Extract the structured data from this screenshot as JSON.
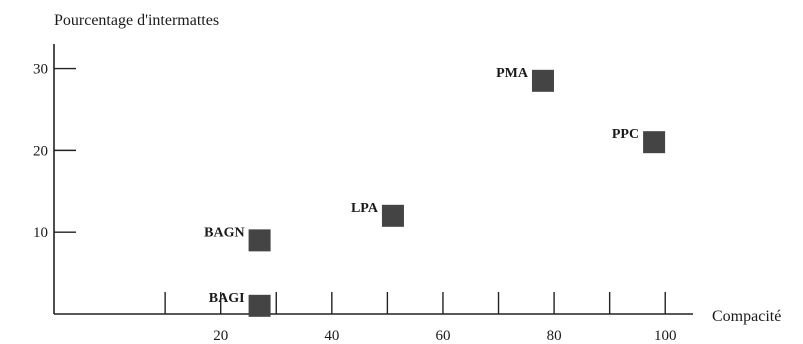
{
  "chart_data": {
    "type": "scatter",
    "title": "",
    "ylabel": "Pourcentage d'intermattes",
    "xlabel": "Compacité",
    "xlim": [
      -10,
      105
    ],
    "ylim": [
      0,
      33
    ],
    "xticks": [
      20,
      40,
      60,
      80,
      100
    ],
    "yticks": [
      10,
      20,
      30
    ],
    "xtick_labels": [
      "20",
      "40",
      "60",
      "80",
      "100"
    ],
    "ytick_labels": [
      "10",
      "20",
      "30"
    ],
    "x_minor_ticks": [
      10,
      30,
      50,
      70,
      90
    ],
    "grid": false,
    "legend": "none",
    "marker": "square",
    "marker_color": "#444444",
    "points": [
      {
        "label": "BAGI",
        "x": 27,
        "y": 1
      },
      {
        "label": "BAGN",
        "x": 27,
        "y": 9
      },
      {
        "label": "LPA",
        "x": 51,
        "y": 12
      },
      {
        "label": "PMA",
        "x": 78,
        "y": 28.5
      },
      {
        "label": "PPC",
        "x": 98,
        "y": 21
      }
    ]
  }
}
